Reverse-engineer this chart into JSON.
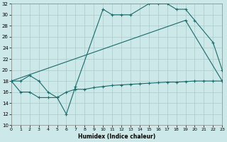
{
  "xlabel": "Humidex (Indice chaleur)",
  "bg_color": "#cce8e8",
  "line_color": "#1a6b6b",
  "grid_color": "#aacccc",
  "xlim": [
    0,
    23
  ],
  "ylim": [
    10,
    32
  ],
  "xticks": [
    0,
    1,
    2,
    3,
    4,
    5,
    6,
    7,
    8,
    9,
    10,
    11,
    12,
    13,
    14,
    15,
    16,
    17,
    18,
    19,
    20,
    21,
    22,
    23
  ],
  "yticks": [
    10,
    12,
    14,
    16,
    18,
    20,
    22,
    24,
    26,
    28,
    30,
    32
  ],
  "curve1_x": [
    0,
    1,
    2,
    3,
    4,
    5,
    6,
    7,
    10,
    11,
    12,
    13,
    15,
    16,
    17,
    18,
    19,
    20,
    22,
    23
  ],
  "curve1_y": [
    18,
    18,
    19,
    18,
    16,
    15,
    12,
    17,
    31,
    30,
    30,
    30,
    32,
    32,
    32,
    31,
    31,
    29,
    25,
    20
  ],
  "curve2_x": [
    0,
    19,
    23
  ],
  "curve2_y": [
    18,
    29,
    18
  ],
  "curve3_x": [
    0,
    1,
    2,
    3,
    4,
    5,
    6,
    7,
    8,
    9,
    10,
    11,
    12,
    13,
    14,
    15,
    16,
    17,
    18,
    19,
    20,
    21,
    22,
    23
  ],
  "curve3_y": [
    18,
    16,
    16,
    15,
    15,
    15,
    16,
    16.5,
    16.5,
    16.8,
    17,
    17.2,
    17.3,
    17.4,
    17.5,
    17.6,
    17.7,
    17.8,
    17.8,
    17.9,
    18.0,
    18.0,
    18.0,
    18.0
  ],
  "xlabel_fontsize": 5.5,
  "tick_fontsize": 5,
  "linewidth": 0.8,
  "markersize": 3
}
